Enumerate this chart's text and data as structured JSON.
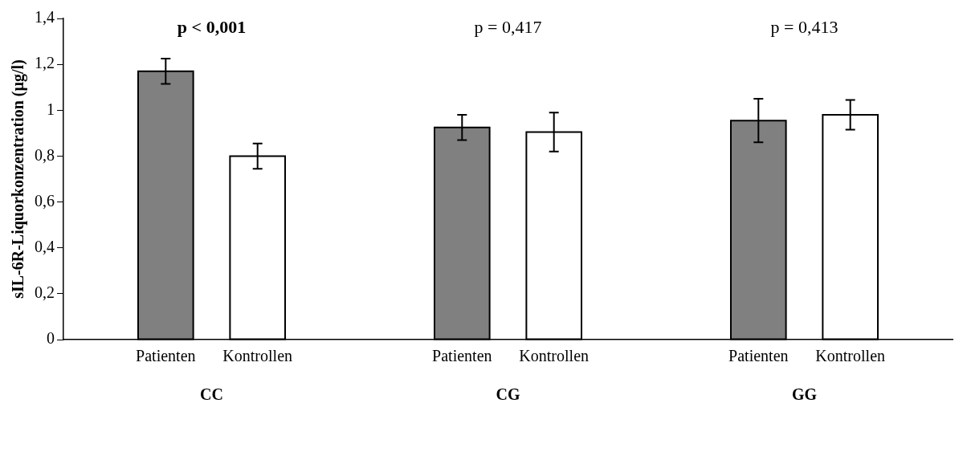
{
  "chart_data": {
    "type": "bar",
    "ylabel": "sIL-6R-Liquorkonzentration (µg/l)",
    "categories": [
      "CC",
      "CG",
      "GG"
    ],
    "series": [
      {
        "name": "Patienten",
        "color": "#808080",
        "values": [
          1.17,
          0.925,
          0.955
        ],
        "errors": [
          0.055,
          0.055,
          0.095
        ]
      },
      {
        "name": "Kontrollen",
        "color": "#ffffff",
        "values": [
          0.8,
          0.905,
          0.98
        ],
        "errors": [
          0.055,
          0.085,
          0.065
        ]
      }
    ],
    "ylim": [
      0,
      1.4
    ],
    "yticks": [
      0,
      {
        "value": 0.2,
        "label": "0,2"
      },
      {
        "value": 0.4,
        "label": "0,4"
      },
      {
        "value": 0.6,
        "label": "0,6"
      },
      {
        "value": 0.8,
        "label": "0,8"
      },
      1,
      {
        "value": 1.2,
        "label": "1,2"
      },
      {
        "value": 1.4,
        "label": "1,4"
      }
    ],
    "annotations": [
      "p < 0,001",
      "p = 0,417",
      "p = 0,413"
    ],
    "grid": false,
    "legend": false
  }
}
